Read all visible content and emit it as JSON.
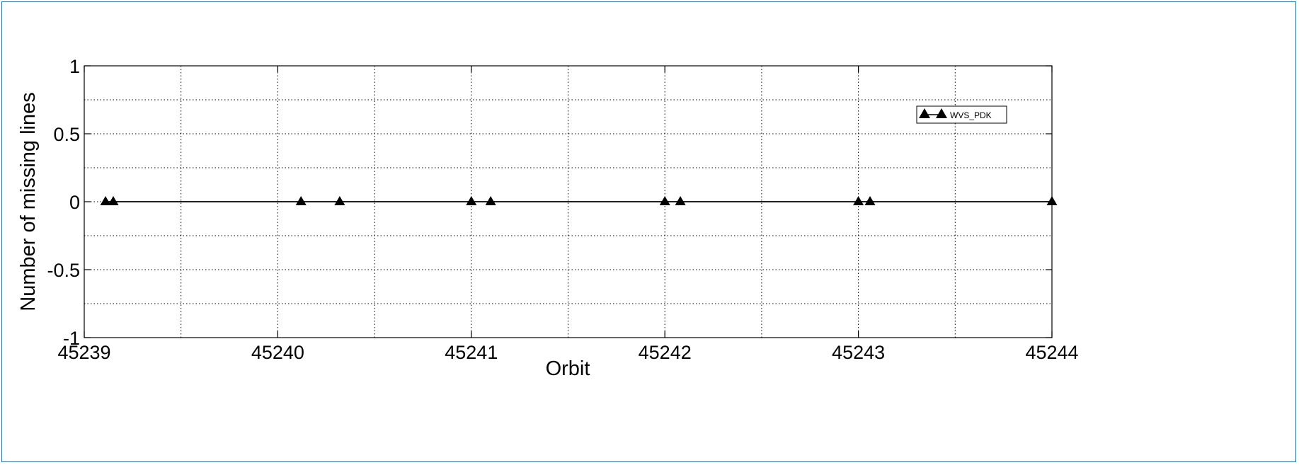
{
  "chart_data": {
    "type": "scatter",
    "title": "",
    "xlabel": "Orbit",
    "ylabel": "Number of missing lines",
    "xlim": [
      45239,
      45244
    ],
    "ylim": [
      -1,
      1
    ],
    "xticks": [
      45239,
      45240,
      45241,
      45242,
      45243,
      45244
    ],
    "yticks": [
      -1,
      -0.5,
      0,
      0.5,
      1
    ],
    "ytick_labels": [
      "-1",
      "-0.5",
      "0",
      "0.5",
      "1"
    ],
    "grid": true,
    "legend_position": "top-right",
    "series": [
      {
        "name": "WVS_PDK",
        "color": "#000000",
        "marker": "triangle",
        "line": true,
        "x": [
          45239.11,
          45239.15,
          45240.12,
          45240.32,
          45241.0,
          45241.1,
          45242.0,
          45242.08,
          45243.0,
          45243.06,
          45244.0
        ],
        "y": [
          0,
          0,
          0,
          0,
          0,
          0,
          0,
          0,
          0,
          0,
          0
        ]
      }
    ]
  }
}
